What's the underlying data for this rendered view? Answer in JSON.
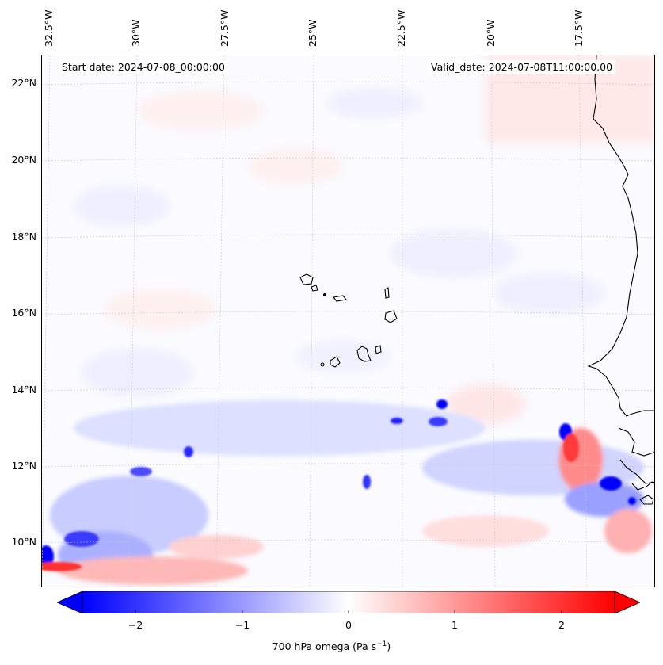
{
  "map": {
    "longitude_labels": [
      "32.5°W",
      "30°W",
      "27.5°W",
      "25°W",
      "22.5°W",
      "20°W",
      "17.5°W"
    ],
    "latitude_labels": [
      "22°N",
      "20°N",
      "18°N",
      "16°N",
      "14°N",
      "12°N",
      "10°N"
    ],
    "start_date": "Start date: 2024-07-08_00:00:00",
    "valid_date": "Valid_date: 2024-07-08T11:00:00.00"
  },
  "colorbar": {
    "tick_labels": [
      "−2",
      "−1",
      "0",
      "1",
      "2"
    ],
    "label": "700 hPa omega (Pa s",
    "label_superscript": "−1",
    "label_suffix": ")",
    "min": -2.5,
    "max": 2.5,
    "colors": {
      "negative": "#0000ff",
      "zero": "#ffffff",
      "positive": "#ff0000"
    }
  }
}
